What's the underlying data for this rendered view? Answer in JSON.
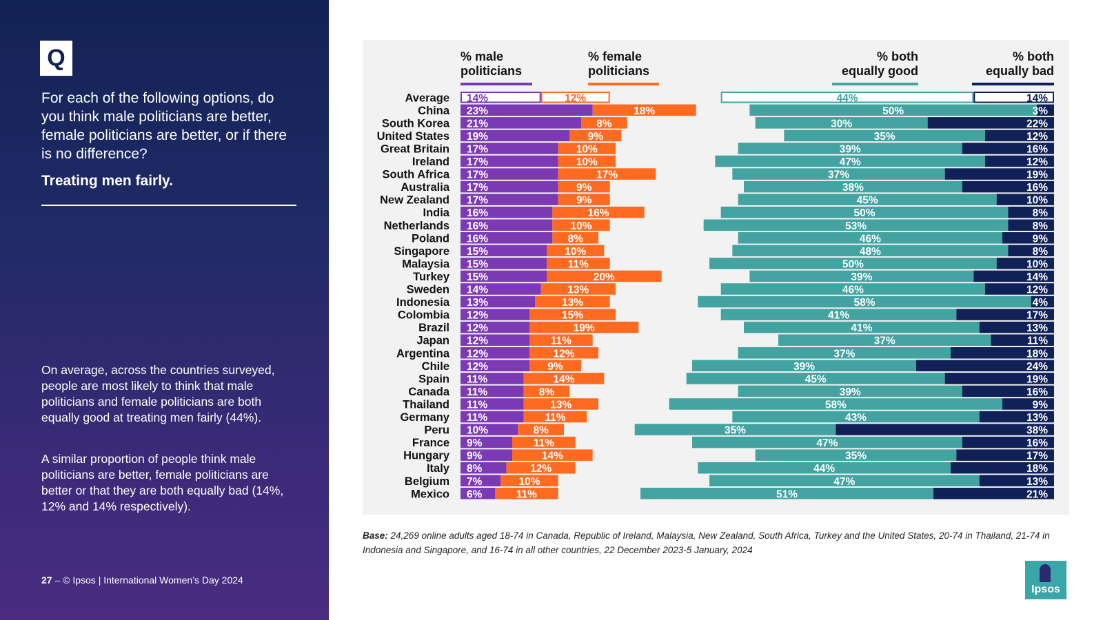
{
  "sidebar": {
    "q_badge": "Q",
    "question": "For each of the following options, do you think male politicians are better, female politicians are better, or if there is no difference?",
    "subheading": "Treating men fairly.",
    "summary_1": "On average, across the countries surveyed, people are most likely to think that male politicians and female politicians are both equally good at treating men fairly (44%).",
    "summary_2": "A similar proportion of people think male politicians are better, female politicians are better or that they are both equally bad (14%, 12% and 14% respectively).",
    "footer_page": "27",
    "footer_text": " – © Ipsos | International Women’s Day 2024"
  },
  "base_note": {
    "label": "Base:",
    "text": " 24,269 online adults aged 18-74 in Canada, Republic of Ireland, Malaysia, New Zealand, South Africa, Turkey and the United States, 20-74 in Thailand, 21-74 in Indonesia and Singapore, and 16-74 in all other countries, 22 December 2023-5 January, 2024"
  },
  "logo": {
    "text": "Ipsos"
  },
  "colors": {
    "male": "#7b3ab4",
    "female": "#ff6a21",
    "good": "#42a3a1",
    "bad": "#0f2157",
    "panel": "#f2f2f2"
  },
  "chart_data": {
    "type": "bar",
    "series": [
      {
        "name": "% male politicians",
        "values": [
          14,
          23,
          21,
          19,
          17,
          17,
          17,
          17,
          17,
          16,
          16,
          16,
          15,
          15,
          15,
          14,
          13,
          12,
          12,
          12,
          12,
          12,
          11,
          11,
          11,
          11,
          10,
          9,
          9,
          8,
          7,
          6
        ]
      },
      {
        "name": "% female politicians",
        "values": [
          12,
          18,
          8,
          9,
          10,
          10,
          17,
          9,
          9,
          16,
          10,
          8,
          10,
          11,
          20,
          13,
          13,
          15,
          19,
          11,
          12,
          9,
          14,
          8,
          13,
          11,
          8,
          11,
          14,
          12,
          10,
          11
        ]
      },
      {
        "name": "% both equally good",
        "values": [
          44,
          50,
          30,
          35,
          39,
          47,
          37,
          38,
          45,
          50,
          53,
          46,
          48,
          50,
          39,
          46,
          58,
          41,
          41,
          37,
          37,
          39,
          45,
          39,
          58,
          43,
          35,
          47,
          35,
          44,
          47,
          51
        ]
      },
      {
        "name": "% both equally bad",
        "values": [
          14,
          3,
          22,
          12,
          16,
          12,
          19,
          16,
          10,
          8,
          8,
          9,
          8,
          10,
          14,
          12,
          4,
          17,
          13,
          11,
          18,
          24,
          19,
          16,
          9,
          13,
          38,
          16,
          17,
          18,
          13,
          21
        ]
      }
    ],
    "categories": [
      "Average",
      "China",
      "South Korea",
      "United States",
      "Great Britain",
      "Ireland",
      "South Africa",
      "Australia",
      "New Zealand",
      "India",
      "Netherlands",
      "Poland",
      "Singapore",
      "Malaysia",
      "Turkey",
      "Sweden",
      "Indonesia",
      "Colombia",
      "Brazil",
      "Japan",
      "Argentina",
      "Chile",
      "Spain",
      "Canada",
      "Thailand",
      "Germany",
      "Peru",
      "France",
      "Hungary",
      "Italy",
      "Belgium",
      "Mexico"
    ],
    "headers": {
      "male": [
        "% male",
        "politicians"
      ],
      "female": [
        "% female",
        "politicians"
      ],
      "good": [
        "% both",
        "equally good"
      ],
      "bad": [
        "% both",
        "equally bad"
      ]
    },
    "value_suffix": "%"
  }
}
